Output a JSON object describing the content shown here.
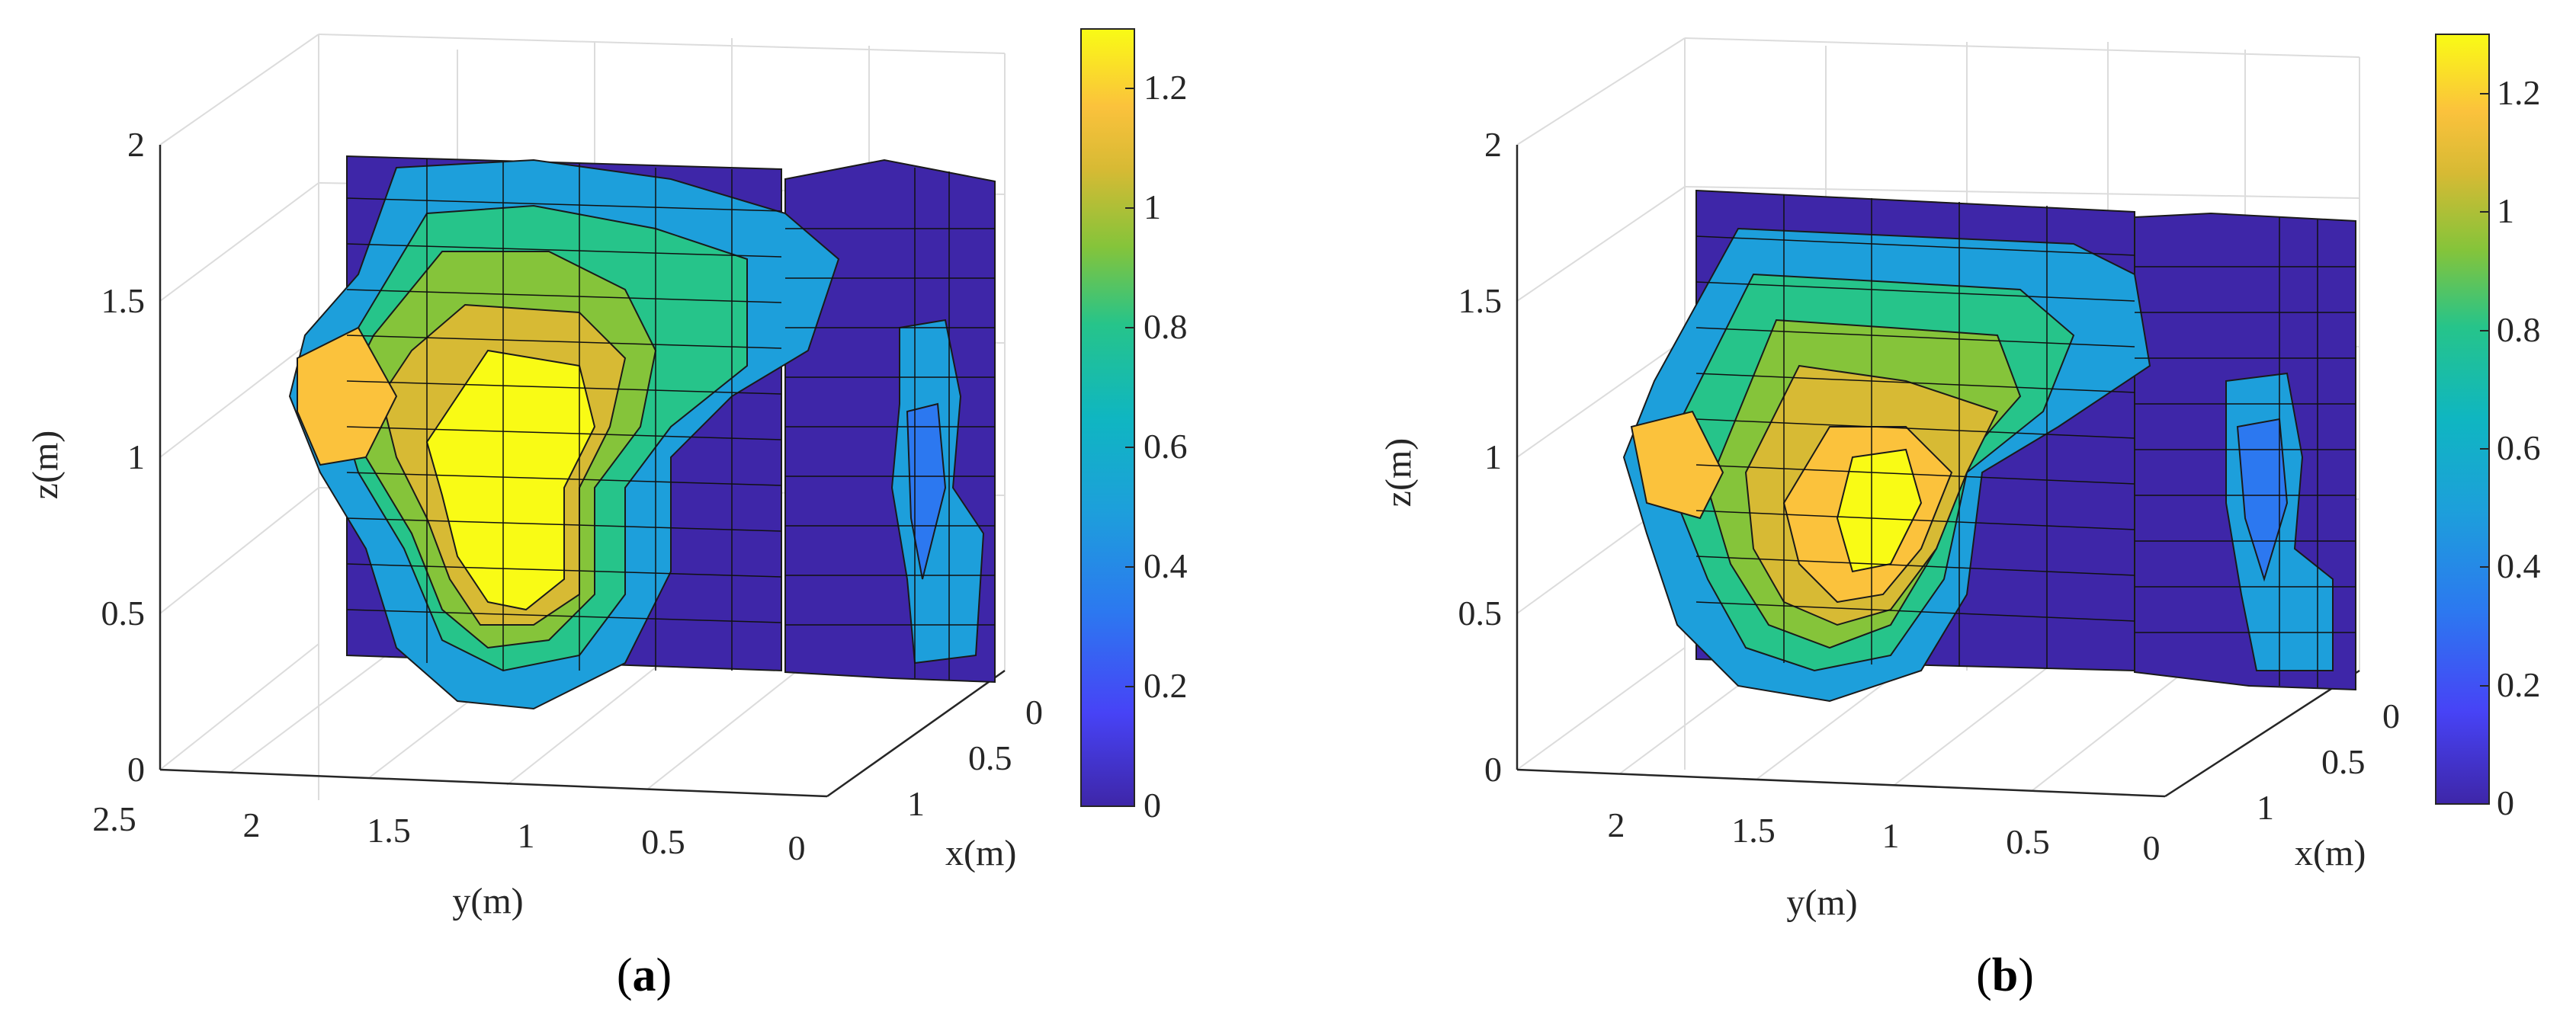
{
  "chart_data": [
    {
      "type": "surface",
      "panel_label": "a",
      "xlabel": "x(m)",
      "ylabel": "y(m)",
      "zlabel": "z(m)",
      "x_ticks": [
        "0",
        "0.5",
        "1"
      ],
      "y_ticks": [
        "2.5",
        "2",
        "1.5",
        "1",
        "0.5",
        "0"
      ],
      "z_ticks": [
        "0",
        "0.5",
        "1",
        "1.5",
        "2"
      ],
      "colorbar_ticks": [
        "0",
        "0.2",
        "0.4",
        "0.6",
        "0.8",
        "1",
        "1.2"
      ],
      "colorbar_range": [
        0,
        1.3
      ],
      "grid": true
    },
    {
      "type": "surface",
      "panel_label": "b",
      "xlabel": "x(m)",
      "ylabel": "y(m)",
      "zlabel": "z(m)",
      "x_ticks": [
        "0",
        "0.5",
        "1"
      ],
      "y_ticks": [
        "2",
        "1.5",
        "1",
        "0.5",
        "0"
      ],
      "z_ticks": [
        "0",
        "0.5",
        "1",
        "1.5",
        "2"
      ],
      "colorbar_ticks": [
        "0",
        "0.2",
        "0.4",
        "0.6",
        "0.8",
        "1",
        "1.2"
      ],
      "colorbar_range": [
        0,
        1.3
      ],
      "grid": true
    }
  ],
  "colormap": "parula"
}
